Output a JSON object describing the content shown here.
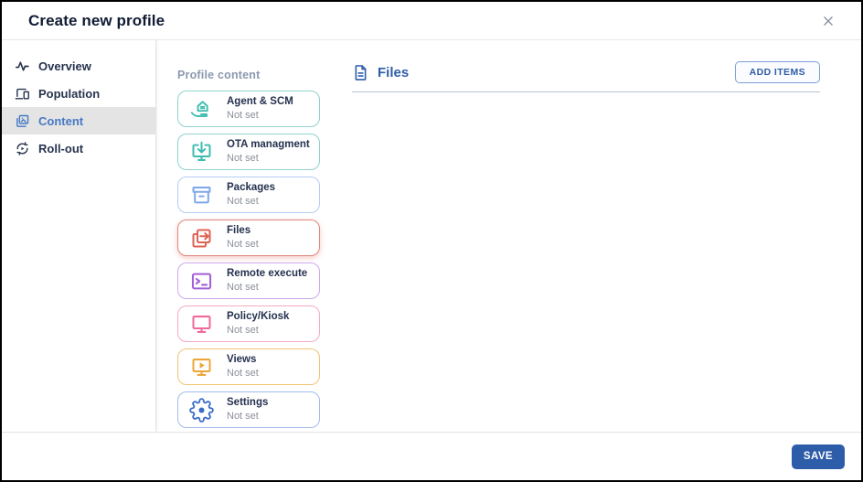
{
  "dialog": {
    "title": "Create new profile"
  },
  "sidebar": {
    "items": [
      {
        "label": "Overview",
        "icon": "pulse-icon",
        "active": false
      },
      {
        "label": "Population",
        "icon": "devices-icon",
        "active": false
      },
      {
        "label": "Content",
        "icon": "content-icon",
        "active": true
      },
      {
        "label": "Roll-out",
        "icon": "rollout-icon",
        "active": false
      }
    ],
    "active_color": "#4779c4",
    "active_bg": "#e4e4e4"
  },
  "content_column": {
    "heading": "Profile content",
    "cards": [
      {
        "title": "Agent & SCM",
        "status": "Not set",
        "icon": "agent-scm-icon",
        "border_color": "#8fd3ca",
        "icon_color": "#3fbdb0",
        "selected": false
      },
      {
        "title": "OTA managment",
        "status": "Not set",
        "icon": "ota-management-icon",
        "border_color": "#8fd3ca",
        "icon_color": "#3fbdb0",
        "selected": false
      },
      {
        "title": "Packages",
        "status": "Not set",
        "icon": "packages-icon",
        "border_color": "#b3cdf4",
        "icon_color": "#7fa9ea",
        "selected": false
      },
      {
        "title": "Files",
        "status": "Not set",
        "icon": "files-icon",
        "border_color": "#e0897f",
        "icon_color": "#dd6353",
        "selected": true
      },
      {
        "title": "Remote execute",
        "status": "Not set",
        "icon": "remote-execute-icon",
        "border_color": "#cfa9ea",
        "icon_color": "#a45fd8",
        "selected": false
      },
      {
        "title": "Policy/Kiosk",
        "status": "Not set",
        "icon": "policy-kiosk-icon",
        "border_color": "#f6aac6",
        "icon_color": "#f0699c",
        "selected": false
      },
      {
        "title": "Views",
        "status": "Not set",
        "icon": "views-icon",
        "border_color": "#f2c472",
        "icon_color": "#eda63b",
        "selected": false
      },
      {
        "title": "Settings",
        "status": "Not set",
        "icon": "settings-gear-icon",
        "border_color": "#a3bcec",
        "icon_color": "#3a6bc9",
        "selected": false
      }
    ]
  },
  "panel": {
    "title": "Files",
    "icon": "file-document-icon",
    "add_items_label": "ADD ITEMS",
    "accent_color": "#2e5da8"
  },
  "footer": {
    "save_label": "SAVE",
    "save_color": "#2d5ca8"
  }
}
